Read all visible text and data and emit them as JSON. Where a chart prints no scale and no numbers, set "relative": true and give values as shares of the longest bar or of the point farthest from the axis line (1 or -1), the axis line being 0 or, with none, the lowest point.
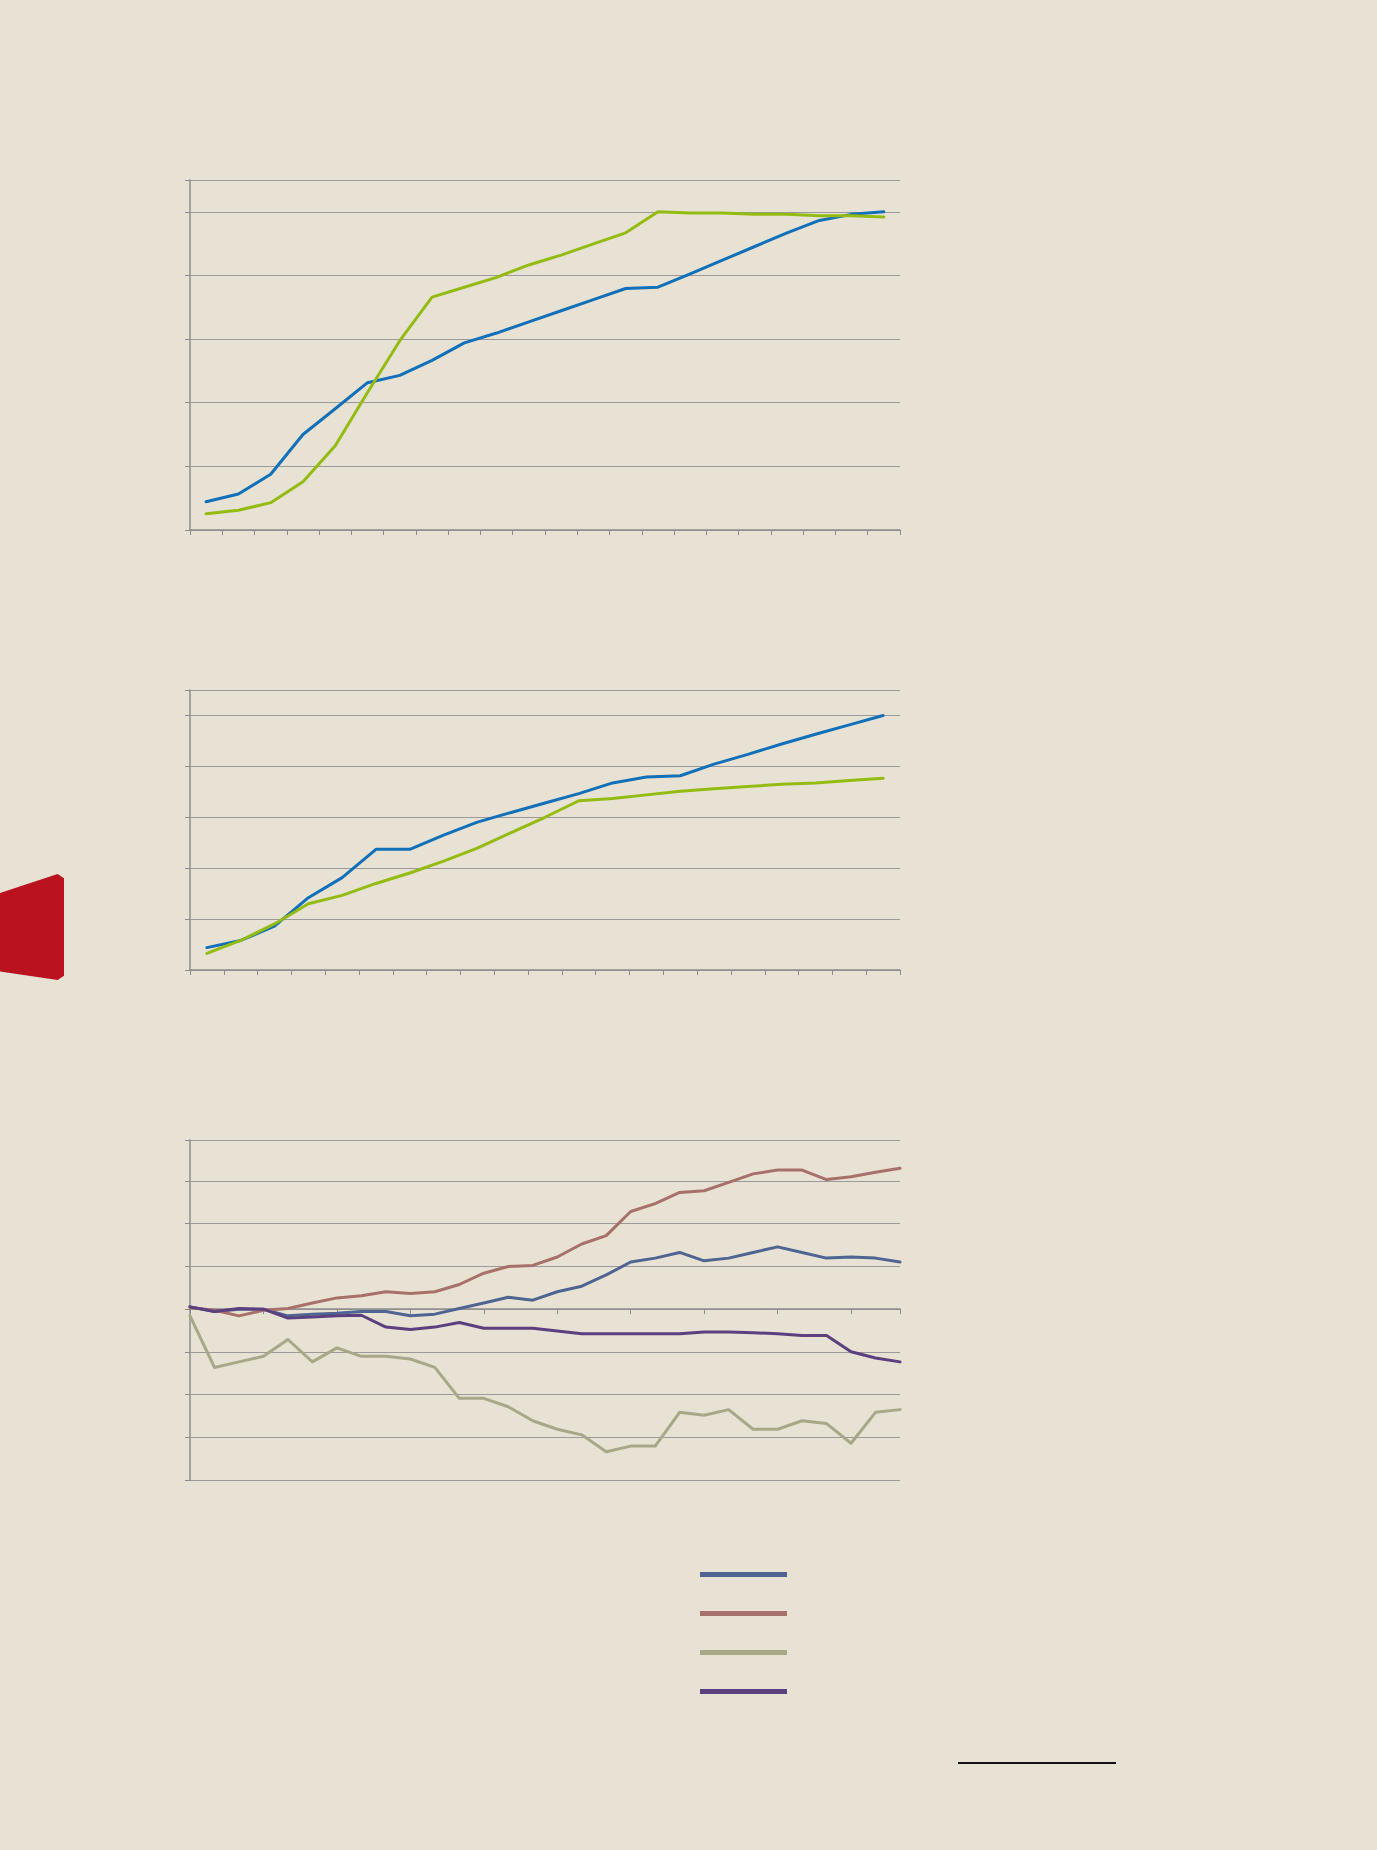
{
  "chart_data": [
    {
      "type": "line",
      "relative": true,
      "grid": "y",
      "marker": "none",
      "line_style": "solid",
      "categories": [
        null,
        null,
        null,
        null,
        null,
        null,
        null,
        null,
        null,
        null,
        null,
        null,
        null,
        null,
        null,
        null,
        null,
        null,
        null,
        null,
        null,
        null
      ],
      "series": [
        {
          "color": "#1270b8",
          "values": [
            0.089,
            0.113,
            0.175,
            0.3,
            0.381,
            0.463,
            0.486,
            0.533,
            0.588,
            0.619,
            0.654,
            0.689,
            0.724,
            0.759,
            0.763,
            0.805,
            0.848,
            0.891,
            0.934,
            0.973,
            0.992,
            1
          ]
        },
        {
          "color": "#94bb12",
          "values": [
            0.051,
            0.062,
            0.086,
            0.152,
            0.265,
            0.432,
            0.595,
            0.732,
            0.763,
            0.794,
            0.833,
            0.864,
            0.899,
            0.934,
            1,
            0.996,
            0.996,
            0.992,
            0.992,
            0.988,
            0.988,
            0.984
          ]
        }
      ]
    },
    {
      "type": "line",
      "relative": true,
      "grid": "y",
      "marker": "none",
      "line_style": "solid",
      "categories": [
        null,
        null,
        null,
        null,
        null,
        null,
        null,
        null,
        null,
        null,
        null,
        null,
        null,
        null,
        null,
        null,
        null,
        null,
        null,
        null,
        null
      ],
      "series": [
        {
          "color": "#1270b8",
          "values": [
            0.088,
            0.116,
            0.172,
            0.284,
            0.363,
            0.474,
            0.474,
            0.53,
            0.581,
            0.619,
            0.656,
            0.693,
            0.735,
            0.758,
            0.763,
            0.809,
            0.847,
            0.888,
            0.926,
            0.963,
            1
          ]
        },
        {
          "color": "#94bb12",
          "values": [
            0.065,
            0.116,
            0.181,
            0.26,
            0.293,
            0.34,
            0.381,
            0.428,
            0.479,
            0.54,
            0.6,
            0.665,
            0.674,
            0.688,
            0.702,
            0.712,
            0.721,
            0.73,
            0.735,
            0.744,
            0.753
          ]
        }
      ]
    },
    {
      "type": "line",
      "relative": true,
      "grid": "y",
      "marker": "none",
      "line_style": "solid",
      "categories": [
        null,
        null,
        null,
        null,
        null,
        null,
        null,
        null,
        null,
        null,
        null,
        null,
        null,
        null,
        null,
        null,
        null,
        null,
        null,
        null,
        null,
        null,
        null,
        null,
        null,
        null,
        null,
        null,
        null,
        null
      ],
      "series": [
        {
          "color": "#4f6491",
          "values": [
            0.016,
            -0.016,
            0,
            0,
            -0.047,
            -0.035,
            -0.028,
            -0.016,
            -0.016,
            -0.047,
            -0.035,
            0.004,
            0.043,
            0.083,
            0.063,
            0.122,
            0.161,
            0.24,
            0.331,
            0.358,
            0.398,
            0.339,
            0.358,
            0.398,
            0.437,
            0.398,
            0.358,
            0.366,
            0.358,
            0.331
          ]
        },
        {
          "color": "#a8706a",
          "values": [
            0.012,
            -0.008,
            -0.047,
            -0.008,
            0.004,
            0.043,
            0.079,
            0.094,
            0.122,
            0.11,
            0.122,
            0.173,
            0.252,
            0.299,
            0.307,
            0.366,
            0.457,
            0.516,
            0.685,
            0.74,
            0.819,
            0.831,
            0.89,
            0.949,
            0.976,
            0.976,
            0.909,
            0.929,
            0.961,
            0.988
          ]
        },
        {
          "color": "#a8a888",
          "values": [
            -0.047,
            -0.409,
            -0.37,
            -0.331,
            -0.213,
            -0.37,
            -0.272,
            -0.331,
            -0.331,
            -0.35,
            -0.409,
            -0.626,
            -0.626,
            -0.685,
            -0.783,
            -0.843,
            -0.882,
            -1,
            -0.961,
            -0.961,
            -0.724,
            -0.744,
            -0.705,
            -0.843,
            -0.843,
            -0.783,
            -0.803,
            -0.941,
            -0.724,
            -0.705
          ]
        },
        {
          "color": "#5b3f7f",
          "values": [
            0.016,
            -0.016,
            0.004,
            0,
            -0.063,
            -0.055,
            -0.047,
            -0.043,
            -0.126,
            -0.142,
            -0.126,
            -0.094,
            -0.134,
            -0.134,
            -0.134,
            -0.154,
            -0.173,
            -0.173,
            -0.173,
            -0.173,
            -0.173,
            -0.161,
            -0.161,
            -0.165,
            -0.173,
            -0.185,
            -0.185,
            -0.299,
            -0.343,
            -0.37
          ]
        }
      ]
    }
  ]
}
